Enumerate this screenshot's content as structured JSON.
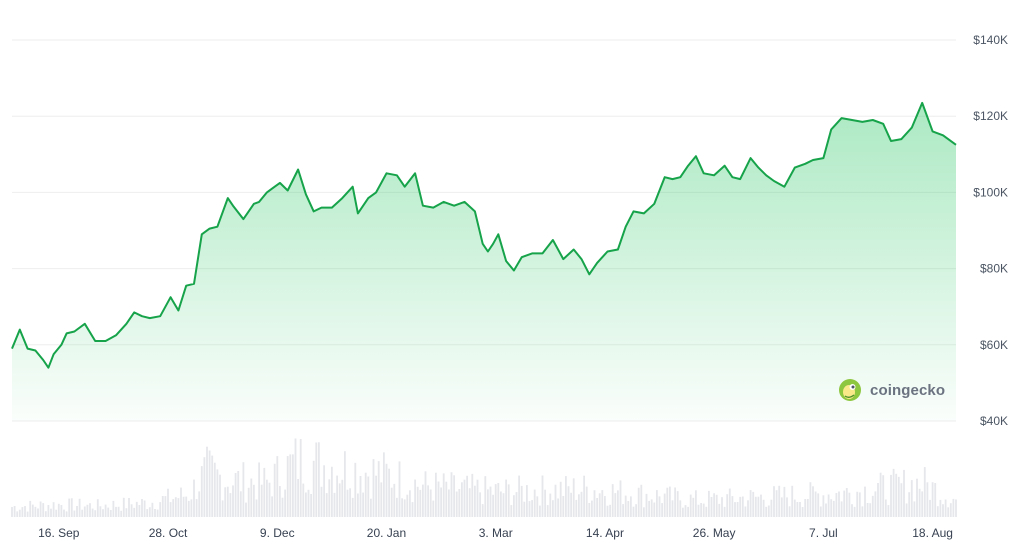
{
  "brand": {
    "name": "coingecko",
    "logo_icon": "gecko-icon"
  },
  "colors": {
    "line": "#16a34a",
    "area": "#22c55e",
    "volume": "#e5e7eb",
    "grid": "#eeeeee"
  },
  "chart_data": {
    "type": "area",
    "y_axis_side": "right",
    "y_unit": "USD",
    "ylim": [
      40000,
      140000
    ],
    "y_ticks": [
      {
        "value": 40000,
        "label": "$40K"
      },
      {
        "value": 60000,
        "label": "$60K"
      },
      {
        "value": 80000,
        "label": "$80K"
      },
      {
        "value": 100000,
        "label": "$100K"
      },
      {
        "value": 120000,
        "label": "$120K"
      },
      {
        "value": 140000,
        "label": "$140K"
      }
    ],
    "x_range": [
      "2024-08-29",
      "2025-08-27"
    ],
    "x_ticks": [
      {
        "date": "2024-09-16",
        "label": "16. Sep"
      },
      {
        "date": "2024-10-28",
        "label": "28. Oct"
      },
      {
        "date": "2024-12-09",
        "label": "9. Dec"
      },
      {
        "date": "2025-01-20",
        "label": "20. Jan"
      },
      {
        "date": "2025-03-03",
        "label": "3. Mar"
      },
      {
        "date": "2025-04-14",
        "label": "14. Apr"
      },
      {
        "date": "2025-05-26",
        "label": "26. May"
      },
      {
        "date": "2025-07-07",
        "label": "7. Jul"
      },
      {
        "date": "2025-08-18",
        "label": "18. Aug"
      }
    ],
    "grid": true,
    "price_series": {
      "x": [
        "2024-08-29",
        "2024-09-01",
        "2024-09-04",
        "2024-09-07",
        "2024-09-10",
        "2024-09-12",
        "2024-09-14",
        "2024-09-17",
        "2024-09-19",
        "2024-09-22",
        "2024-09-26",
        "2024-09-30",
        "2024-10-04",
        "2024-10-08",
        "2024-10-12",
        "2024-10-15",
        "2024-10-18",
        "2024-10-21",
        "2024-10-25",
        "2024-10-29",
        "2024-11-01",
        "2024-11-04",
        "2024-11-07",
        "2024-11-10",
        "2024-11-13",
        "2024-11-16",
        "2024-11-20",
        "2024-11-22",
        "2024-11-26",
        "2024-11-30",
        "2024-12-02",
        "2024-12-05",
        "2024-12-07",
        "2024-12-10",
        "2024-12-13",
        "2024-12-17",
        "2024-12-20",
        "2024-12-23",
        "2024-12-26",
        "2024-12-30",
        "2025-01-03",
        "2025-01-07",
        "2025-01-09",
        "2025-01-13",
        "2025-01-16",
        "2025-01-20",
        "2025-01-24",
        "2025-01-27",
        "2025-01-31",
        "2025-02-03",
        "2025-02-07",
        "2025-02-11",
        "2025-02-15",
        "2025-02-19",
        "2025-02-23",
        "2025-02-26",
        "2025-02-28",
        "2025-03-02",
        "2025-03-04",
        "2025-03-07",
        "2025-03-10",
        "2025-03-13",
        "2025-03-17",
        "2025-03-21",
        "2025-03-25",
        "2025-03-29",
        "2025-04-02",
        "2025-04-05",
        "2025-04-08",
        "2025-04-11",
        "2025-04-15",
        "2025-04-19",
        "2025-04-22",
        "2025-04-25",
        "2025-04-29",
        "2025-05-03",
        "2025-05-07",
        "2025-05-10",
        "2025-05-13",
        "2025-05-16",
        "2025-05-19",
        "2025-05-22",
        "2025-05-26",
        "2025-05-30",
        "2025-06-02",
        "2025-06-05",
        "2025-06-09",
        "2025-06-12",
        "2025-06-15",
        "2025-06-18",
        "2025-06-22",
        "2025-06-26",
        "2025-06-30",
        "2025-07-03",
        "2025-07-07",
        "2025-07-10",
        "2025-07-14",
        "2025-07-18",
        "2025-07-22",
        "2025-07-26",
        "2025-07-30",
        "2025-08-02",
        "2025-08-06",
        "2025-08-10",
        "2025-08-14",
        "2025-08-18",
        "2025-08-22",
        "2025-08-27"
      ],
      "y": [
        59000,
        64000,
        59000,
        58500,
        56000,
        54000,
        57500,
        60000,
        63000,
        63500,
        65500,
        61000,
        61000,
        62500,
        65500,
        68500,
        67500,
        67000,
        67500,
        72500,
        69000,
        75500,
        76000,
        89000,
        90500,
        91000,
        98500,
        96500,
        93000,
        97000,
        97500,
        100000,
        101000,
        102500,
        100500,
        106000,
        99500,
        95000,
        96000,
        96000,
        98500,
        101500,
        94500,
        98500,
        100000,
        105000,
        104500,
        101500,
        105000,
        96500,
        96000,
        97500,
        96500,
        97500,
        95000,
        86500,
        84500,
        86500,
        89000,
        82000,
        79500,
        83000,
        84000,
        84000,
        87500,
        82500,
        85000,
        82500,
        78500,
        81500,
        84500,
        85000,
        91000,
        95000,
        94500,
        97000,
        104000,
        103500,
        104000,
        107000,
        109500,
        105000,
        104500,
        107000,
        104000,
        103500,
        109000,
        106500,
        104500,
        103000,
        101500,
        106500,
        107500,
        108500,
        109000,
        116500,
        119500,
        119000,
        118500,
        119000,
        118000,
        113500,
        114000,
        117000,
        123500,
        116000,
        115000,
        112500
      ]
    },
    "volume_series": {
      "note_units": "relative volume (0 = none, 100 = peak)",
      "x": [
        "2024-08-29",
        "2024-09-15",
        "2024-10-01",
        "2024-10-20",
        "2024-11-05",
        "2024-11-12",
        "2024-11-20",
        "2024-12-05",
        "2024-12-17",
        "2025-01-20",
        "2025-02-03",
        "2025-03-03",
        "2025-04-07",
        "2025-05-20",
        "2025-07-14",
        "2025-08-14",
        "2025-08-27"
      ],
      "y": [
        18,
        22,
        20,
        25,
        40,
        80,
        65,
        60,
        100,
        75,
        55,
        45,
        50,
        30,
        42,
        60,
        30
      ]
    }
  }
}
